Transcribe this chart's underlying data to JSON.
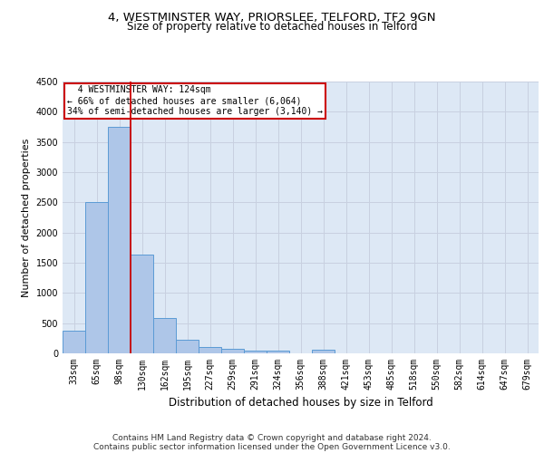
{
  "title1": "4, WESTMINSTER WAY, PRIORSLEE, TELFORD, TF2 9GN",
  "title2": "Size of property relative to detached houses in Telford",
  "xlabel": "Distribution of detached houses by size in Telford",
  "ylabel": "Number of detached properties",
  "footnote1": "Contains HM Land Registry data © Crown copyright and database right 2024.",
  "footnote2": "Contains public sector information licensed under the Open Government Licence v3.0.",
  "bin_labels": [
    "33sqm",
    "65sqm",
    "98sqm",
    "130sqm",
    "162sqm",
    "195sqm",
    "227sqm",
    "259sqm",
    "291sqm",
    "324sqm",
    "356sqm",
    "388sqm",
    "421sqm",
    "453sqm",
    "485sqm",
    "518sqm",
    "550sqm",
    "582sqm",
    "614sqm",
    "647sqm",
    "679sqm"
  ],
  "bar_values": [
    370,
    2500,
    3750,
    1640,
    590,
    230,
    110,
    70,
    40,
    40,
    0,
    60,
    0,
    0,
    0,
    0,
    0,
    0,
    0,
    0,
    0
  ],
  "bar_color": "#aec6e8",
  "bar_edge_color": "#5b9bd5",
  "vline_x_index": 2,
  "vline_color": "#cc0000",
  "annotation_text": "  4 WESTMINSTER WAY: 124sqm\n← 66% of detached houses are smaller (6,064)\n34% of semi-detached houses are larger (3,140) →",
  "annotation_box_color": "#ffffff",
  "annotation_box_edge": "#cc0000",
  "ylim": [
    0,
    4500
  ],
  "yticks": [
    0,
    500,
    1000,
    1500,
    2000,
    2500,
    3000,
    3500,
    4000,
    4500
  ],
  "grid_color": "#c8d0e0",
  "bg_color": "#dde8f5",
  "title1_fontsize": 9.5,
  "title2_fontsize": 8.5,
  "axis_label_fontsize": 8,
  "tick_fontsize": 7,
  "footnote_fontsize": 6.5
}
